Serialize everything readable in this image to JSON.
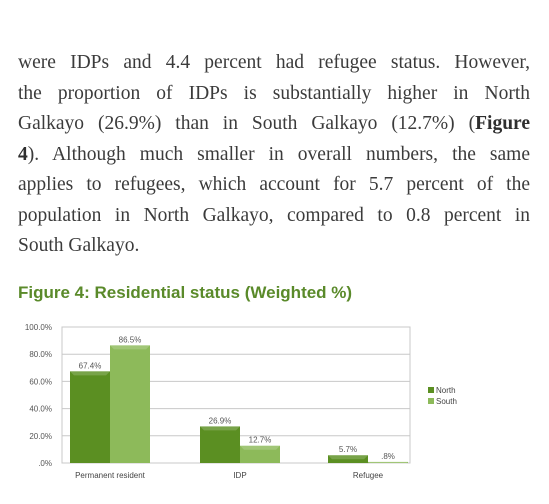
{
  "paragraph": {
    "lines": [
      [
        {
          "t": "were IDPs and 4.4 percent had refugee status. However,"
        }
      ],
      [
        {
          "t": "the proportion of IDPs is substantially higher in North"
        }
      ],
      [
        {
          "t": "Galkayo (26.9%) than in South Galkayo (12.7%) ("
        },
        {
          "t": "Figure",
          "b": true
        }
      ],
      [
        {
          "t": "4",
          "b": true
        },
        {
          "t": "). Although much smaller in overall numbers, the same"
        }
      ],
      [
        {
          "t": "applies to refugees, which account for 5.7 percent of the"
        }
      ],
      [
        {
          "t": "population in North Galkayo, compared to 0.8 percent in"
        }
      ],
      [
        {
          "t": "South Galkayo."
        }
      ]
    ]
  },
  "figure": {
    "title": "Figure 4: Residential status (Weighted %)"
  },
  "chart_data": {
    "type": "bar",
    "title": "Figure 4: Residential status (Weighted %)",
    "categories": [
      "Permanent resident",
      "IDP",
      "Refugee"
    ],
    "series": [
      {
        "name": "North",
        "values": [
          67.4,
          26.9,
          5.7
        ],
        "labels": [
          "67.4%",
          "26.9%",
          "5.7%"
        ],
        "color": "#5b8f22"
      },
      {
        "name": "South",
        "values": [
          86.5,
          12.7,
          0.8
        ],
        "labels": [
          "86.5%",
          "12.7%",
          ".8%"
        ],
        "color": "#8dba5a"
      }
    ],
    "yticks": [
      0,
      20,
      40,
      60,
      80,
      100
    ],
    "ytick_labels": [
      ".0%",
      "20.0%",
      "40.0%",
      "60.0%",
      "80.0%",
      "100.0%"
    ],
    "ylim": [
      0,
      100
    ],
    "grid": true,
    "legend_position": "right"
  }
}
